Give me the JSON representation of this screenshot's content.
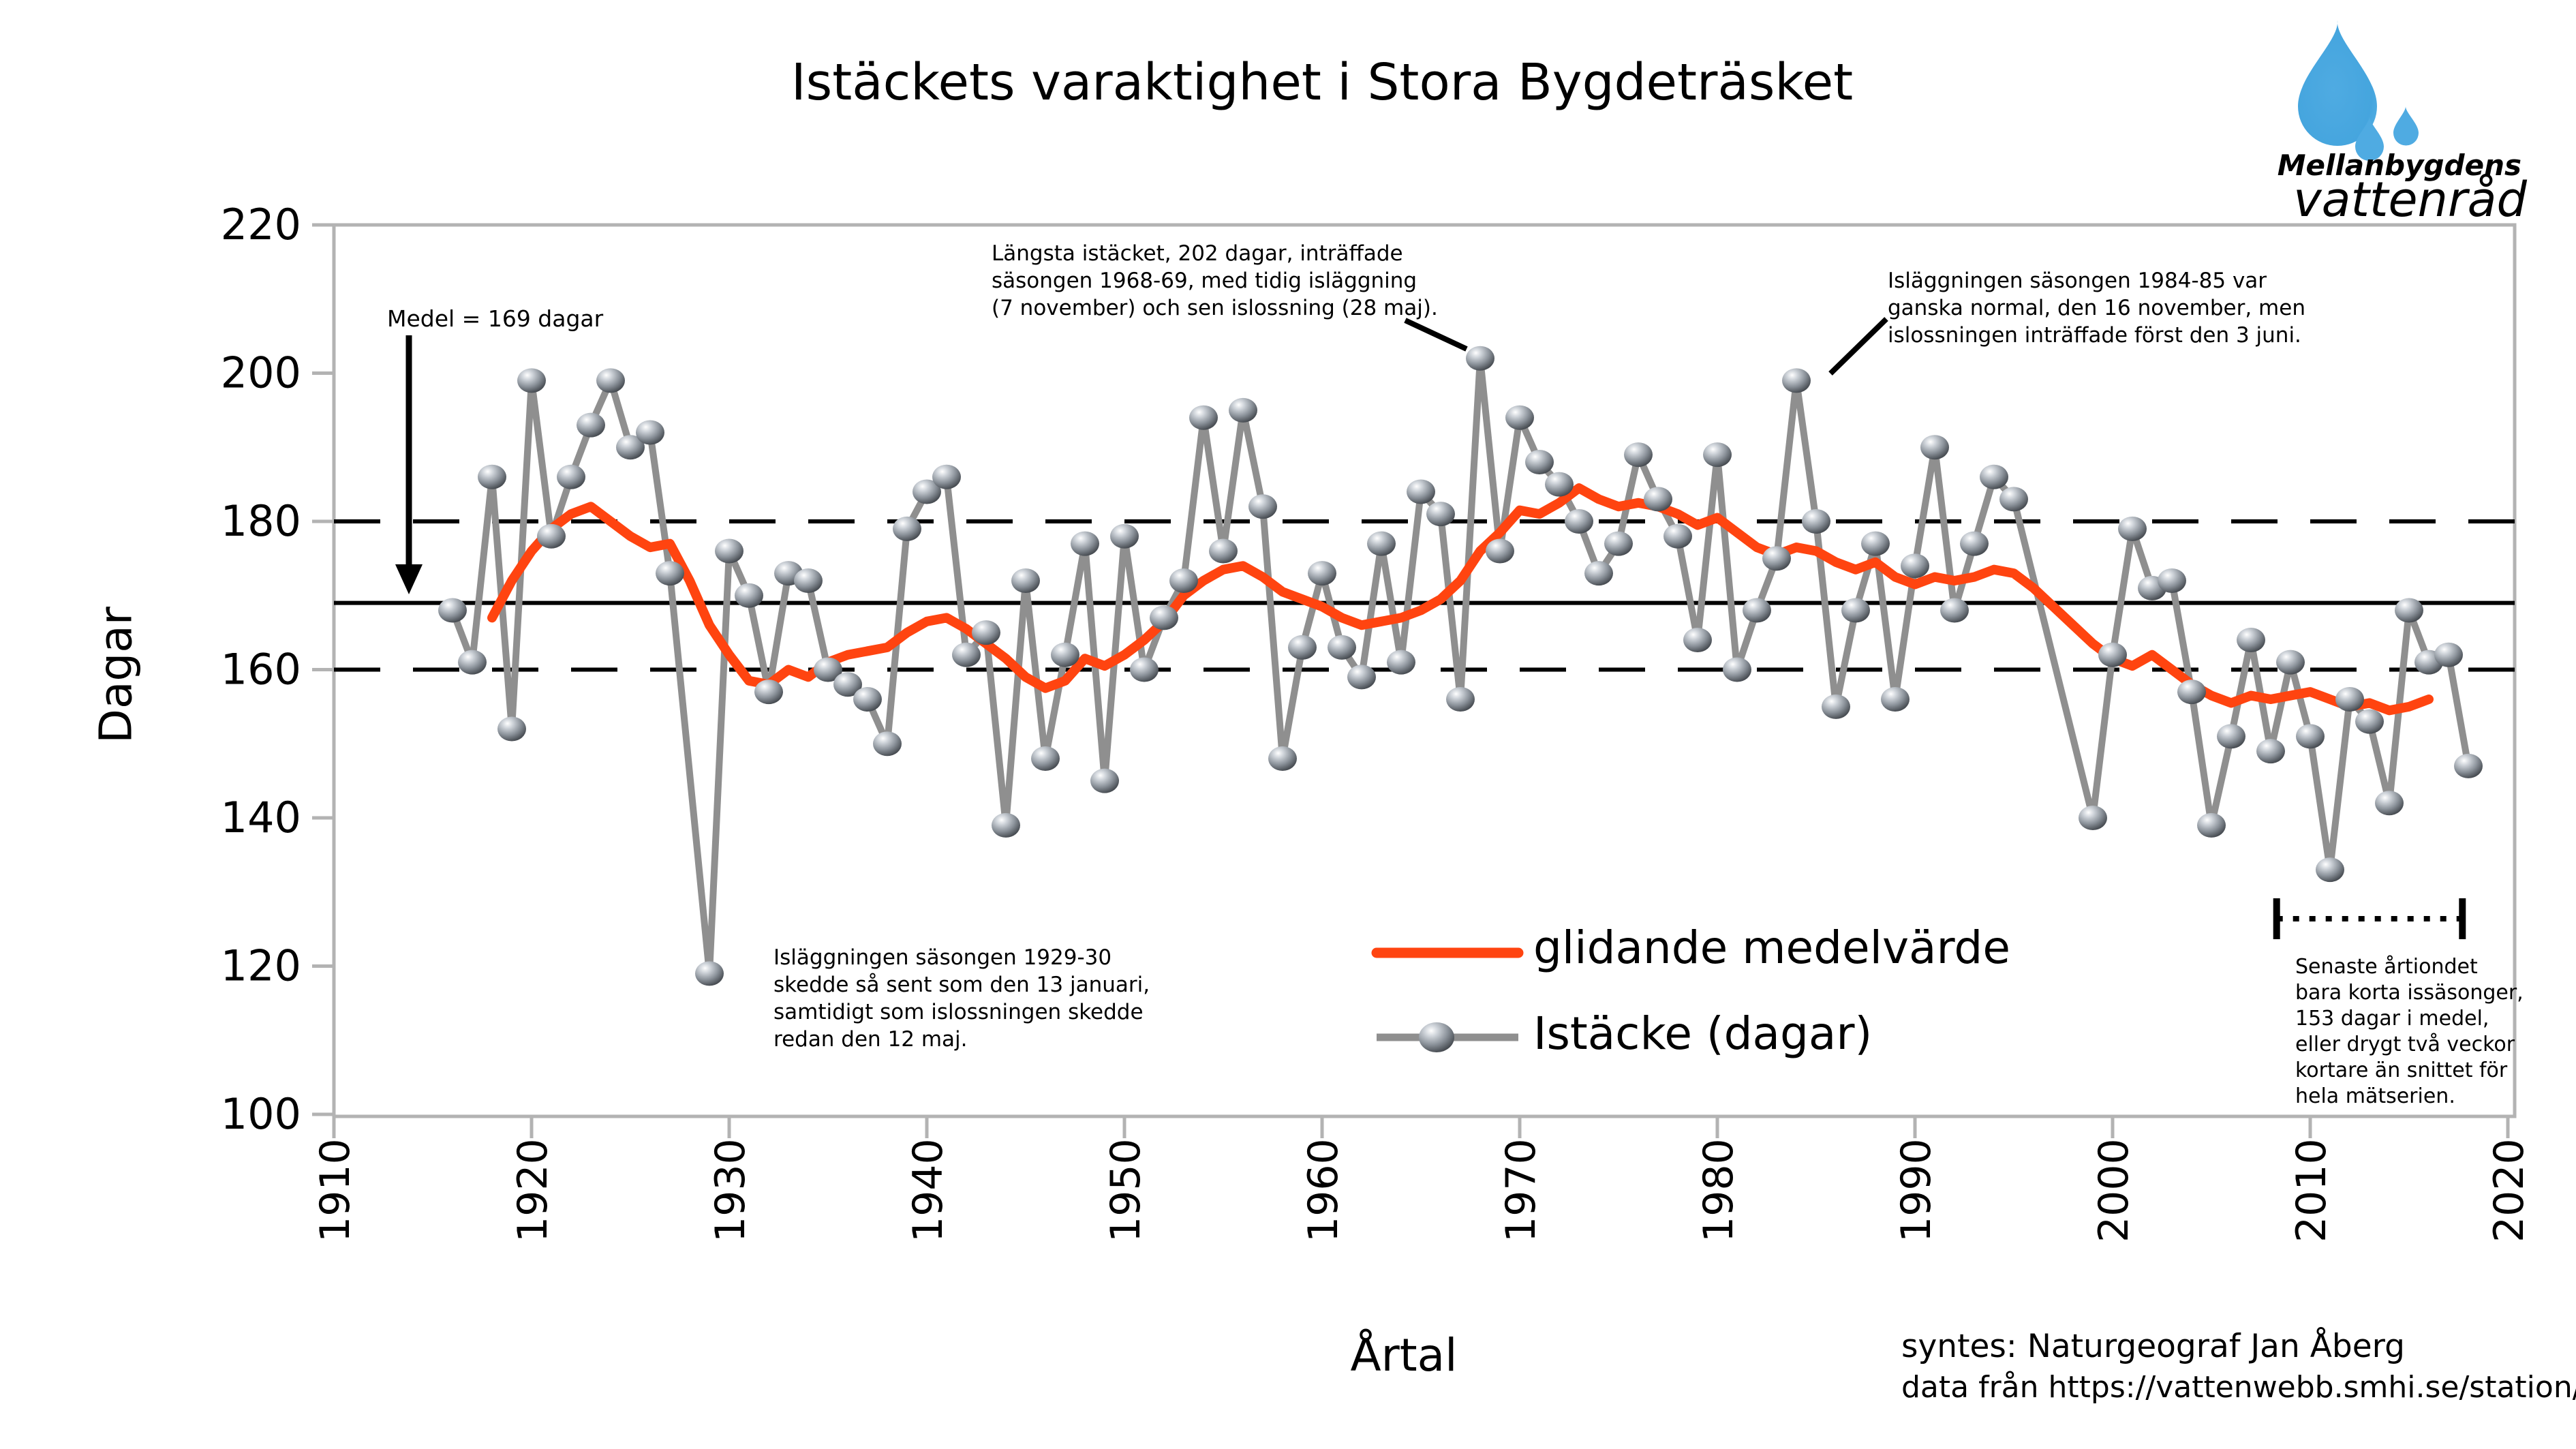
{
  "title": "Istäckets varaktighet i Stora Bygdeträsket",
  "logo": {
    "name_line1": "Mellanbygdens",
    "name_line2": "vattenråd",
    "drop_color": "#45a5de",
    "text_color": "#6cbbe8",
    "icon": "water-drops"
  },
  "axes": {
    "y_label": "Dagar",
    "x_label": "Årtal",
    "y_ticks": [
      220,
      200,
      180,
      160,
      140,
      120,
      100
    ],
    "x_ticks": [
      1910,
      1920,
      1930,
      1940,
      1950,
      1960,
      1970,
      1980,
      1990,
      2000,
      2010,
      2020
    ],
    "y_range": [
      100,
      220
    ],
    "x_range": [
      1910,
      2021
    ]
  },
  "reference_lines": {
    "mean_value": 169,
    "upper_dashed_value": 180,
    "lower_dashed_value": 160
  },
  "annotations": {
    "mean_label": "Medel = 169 dagar",
    "longest": "Längsta istäcket, 202 dagar, inträffade\nsäsongen 1968-69, med tidig isläggning\n(7 november) och sen islossning (28 maj).",
    "season_1984": "Isläggningen säsongen 1984-85 var\nganska normal, den 16 november, men\nislossningen inträffade först den 3 juni.",
    "season_1929": "Isläggningen säsongen 1929-30\nskedde så sent som den 13 januari,\nsamtidigt som islossningen skedde\nredan den 12 maj.",
    "recent_decade": "Senaste årtiondet\nbara korta issäsonger,\n153 dagar i medel,\neller drygt två veckor\nkortare än snittet för\nhela mätserien."
  },
  "legend": [
    {
      "label": "glidande medelvärde",
      "color": "#ff4410",
      "type": "line"
    },
    {
      "label": "Istäcke (dagar)",
      "color": "#8f8f8f",
      "type": "line-with-marker"
    }
  ],
  "credits": {
    "line1": "syntes: Naturgeograf Jan Åberg",
    "line2": "data från https://vattenwebb.smhi.se/station/#"
  },
  "chart_data": {
    "type": "line",
    "title": "Istäckets varaktighet i Stora Bygdeträsket",
    "xlabel": "Årtal",
    "ylabel": "Dagar",
    "xlim": [
      1910,
      2021
    ],
    "ylim": [
      100,
      220
    ],
    "grid": false,
    "legend_position": "lower-center-inside",
    "mean_days": 169,
    "recent_decade_mean_days": 153,
    "recent_decade_bracket_years": [
      2008,
      2018
    ],
    "series": [
      {
        "name": "Istäcke (dagar)",
        "style": "gray line with sphere markers",
        "color": "#8f8f8f",
        "points": [
          [
            1916,
            168
          ],
          [
            1917,
            161
          ],
          [
            1918,
            186
          ],
          [
            1919,
            152
          ],
          [
            1920,
            199
          ],
          [
            1921,
            178
          ],
          [
            1922,
            186
          ],
          [
            1923,
            193
          ],
          [
            1924,
            199
          ],
          [
            1925,
            190
          ],
          [
            1926,
            192
          ],
          [
            1927,
            173
          ],
          [
            1929,
            119
          ],
          [
            1930,
            176
          ],
          [
            1931,
            170
          ],
          [
            1932,
            157
          ],
          [
            1933,
            173
          ],
          [
            1934,
            172
          ],
          [
            1935,
            160
          ],
          [
            1936,
            158
          ],
          [
            1937,
            156
          ],
          [
            1938,
            150
          ],
          [
            1939,
            179
          ],
          [
            1940,
            184
          ],
          [
            1941,
            186
          ],
          [
            1942,
            162
          ],
          [
            1943,
            165
          ],
          [
            1944,
            139
          ],
          [
            1945,
            172
          ],
          [
            1946,
            148
          ],
          [
            1947,
            162
          ],
          [
            1948,
            177
          ],
          [
            1949,
            145
          ],
          [
            1950,
            178
          ],
          [
            1951,
            160
          ],
          [
            1952,
            167
          ],
          [
            1953,
            172
          ],
          [
            1954,
            194
          ],
          [
            1955,
            176
          ],
          [
            1956,
            195
          ],
          [
            1957,
            182
          ],
          [
            1958,
            148
          ],
          [
            1959,
            163
          ],
          [
            1960,
            173
          ],
          [
            1961,
            163
          ],
          [
            1962,
            159
          ],
          [
            1963,
            177
          ],
          [
            1964,
            161
          ],
          [
            1965,
            184
          ],
          [
            1966,
            181
          ],
          [
            1967,
            156
          ],
          [
            1968,
            202
          ],
          [
            1969,
            176
          ],
          [
            1970,
            194
          ],
          [
            1971,
            188
          ],
          [
            1972,
            185
          ],
          [
            1973,
            180
          ],
          [
            1974,
            173
          ],
          [
            1975,
            177
          ],
          [
            1976,
            189
          ],
          [
            1977,
            183
          ],
          [
            1978,
            178
          ],
          [
            1979,
            164
          ],
          [
            1980,
            189
          ],
          [
            1981,
            160
          ],
          [
            1982,
            168
          ],
          [
            1983,
            175
          ],
          [
            1984,
            199
          ],
          [
            1985,
            180
          ],
          [
            1986,
            155
          ],
          [
            1987,
            168
          ],
          [
            1988,
            177
          ],
          [
            1989,
            156
          ],
          [
            1990,
            174
          ],
          [
            1991,
            190
          ],
          [
            1992,
            168
          ],
          [
            1993,
            177
          ],
          [
            1994,
            186
          ],
          [
            1995,
            183
          ],
          [
            1999,
            140
          ],
          [
            2000,
            162
          ],
          [
            2001,
            179
          ],
          [
            2002,
            171
          ],
          [
            2003,
            172
          ],
          [
            2004,
            157
          ],
          [
            2005,
            139
          ],
          [
            2006,
            151
          ],
          [
            2007,
            164
          ],
          [
            2008,
            149
          ],
          [
            2009,
            161
          ],
          [
            2010,
            151
          ],
          [
            2011,
            133
          ],
          [
            2012,
            156
          ],
          [
            2013,
            153
          ],
          [
            2014,
            142
          ],
          [
            2015,
            168
          ],
          [
            2016,
            161
          ],
          [
            2017,
            162
          ],
          [
            2018,
            147
          ]
        ]
      },
      {
        "name": "glidande medelvärde",
        "style": "thick red-orange line",
        "color": "#ff4410",
        "points": [
          [
            1918,
            167
          ],
          [
            1919,
            172
          ],
          [
            1920,
            176
          ],
          [
            1921,
            179
          ],
          [
            1922,
            181
          ],
          [
            1923,
            182
          ],
          [
            1924,
            180
          ],
          [
            1925,
            178
          ],
          [
            1926,
            176.5
          ],
          [
            1927,
            177
          ],
          [
            1928,
            172
          ],
          [
            1929,
            166
          ],
          [
            1930,
            162
          ],
          [
            1931,
            158.5
          ],
          [
            1932,
            158
          ],
          [
            1933,
            160
          ],
          [
            1934,
            159
          ],
          [
            1935,
            161
          ],
          [
            1936,
            162
          ],
          [
            1937,
            162.5
          ],
          [
            1938,
            163
          ],
          [
            1939,
            165
          ],
          [
            1940,
            166.5
          ],
          [
            1941,
            167
          ],
          [
            1942,
            165.5
          ],
          [
            1943,
            163.5
          ],
          [
            1944,
            161.5
          ],
          [
            1945,
            159
          ],
          [
            1946,
            157.5
          ],
          [
            1947,
            158.5
          ],
          [
            1948,
            161.5
          ],
          [
            1949,
            160.5
          ],
          [
            1950,
            162
          ],
          [
            1951,
            164
          ],
          [
            1952,
            166.5
          ],
          [
            1953,
            170
          ],
          [
            1954,
            172
          ],
          [
            1955,
            173.5
          ],
          [
            1956,
            174
          ],
          [
            1957,
            172.5
          ],
          [
            1958,
            170.5
          ],
          [
            1959,
            169.5
          ],
          [
            1960,
            168.5
          ],
          [
            1961,
            167
          ],
          [
            1962,
            166
          ],
          [
            1963,
            166.5
          ],
          [
            1964,
            167
          ],
          [
            1965,
            168
          ],
          [
            1966,
            169.5
          ],
          [
            1967,
            172
          ],
          [
            1968,
            176
          ],
          [
            1969,
            178.5
          ],
          [
            1970,
            181.5
          ],
          [
            1971,
            181
          ],
          [
            1972,
            182.5
          ],
          [
            1973,
            184.5
          ],
          [
            1974,
            183
          ],
          [
            1975,
            182
          ],
          [
            1976,
            182.5
          ],
          [
            1977,
            182
          ],
          [
            1978,
            181
          ],
          [
            1979,
            179.5
          ],
          [
            1980,
            180.5
          ],
          [
            1981,
            178.5
          ],
          [
            1982,
            176.5
          ],
          [
            1983,
            175.5
          ],
          [
            1984,
            176.5
          ],
          [
            1985,
            176
          ],
          [
            1986,
            174.5
          ],
          [
            1987,
            173.5
          ],
          [
            1988,
            174.5
          ],
          [
            1989,
            172.5
          ],
          [
            1990,
            171.5
          ],
          [
            1991,
            172.5
          ],
          [
            1992,
            172
          ],
          [
            1993,
            172.5
          ],
          [
            1994,
            173.5
          ],
          [
            1995,
            173
          ],
          [
            1996,
            171
          ],
          [
            1997,
            168.5
          ],
          [
            1998,
            166
          ],
          [
            1999,
            163.5
          ],
          [
            2000,
            161.5
          ],
          [
            2001,
            160.5
          ],
          [
            2002,
            162
          ],
          [
            2003,
            160
          ],
          [
            2004,
            158
          ],
          [
            2005,
            156.5
          ],
          [
            2006,
            155.5
          ],
          [
            2007,
            156.5
          ],
          [
            2008,
            156
          ],
          [
            2009,
            156.5
          ],
          [
            2010,
            157
          ],
          [
            2011,
            156
          ],
          [
            2012,
            155
          ],
          [
            2013,
            155.5
          ],
          [
            2014,
            154.5
          ],
          [
            2015,
            155
          ],
          [
            2016,
            156
          ]
        ]
      }
    ]
  }
}
